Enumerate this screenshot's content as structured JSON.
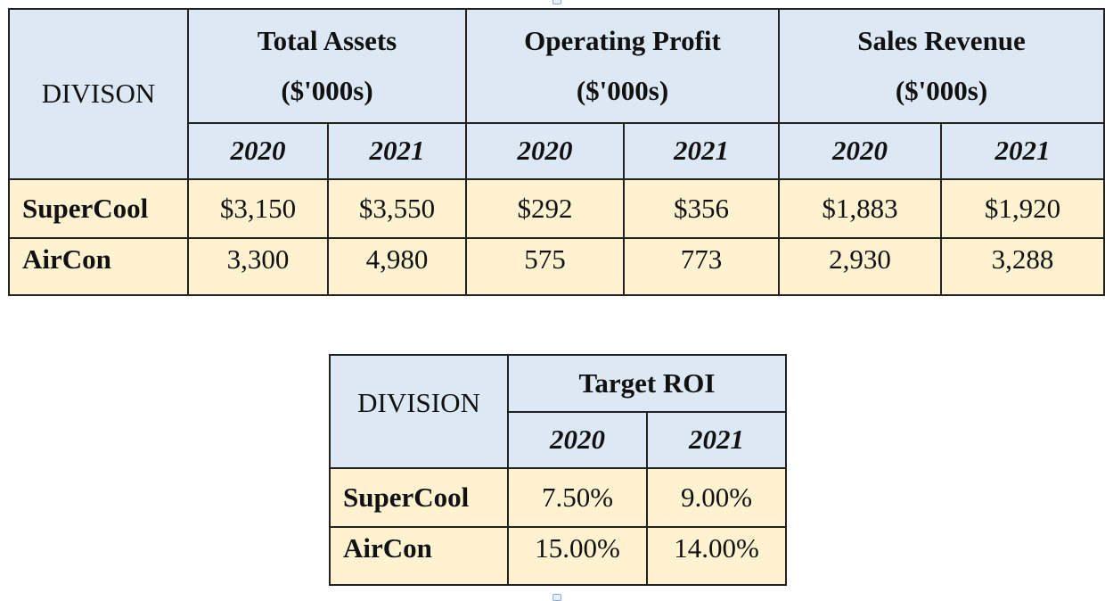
{
  "table1": {
    "division_header": "DIVISON",
    "groups": [
      {
        "title": "Total Assets",
        "unit": "($'000s)"
      },
      {
        "title": "Operating Profit",
        "unit": "($'000s)"
      },
      {
        "title": "Sales Revenue",
        "unit": "($'000s)"
      }
    ],
    "years": [
      "2020",
      "2021",
      "2020",
      "2021",
      "2020",
      "2021"
    ],
    "rows": [
      {
        "division": "SuperCool",
        "values": [
          "$3,150",
          "$3,550",
          "$292",
          "$356",
          "$1,883",
          "$1,920"
        ]
      },
      {
        "division": "AirCon",
        "values": [
          "3,300",
          "4,980",
          "575",
          "773",
          "2,930",
          "3,288"
        ]
      }
    ]
  },
  "table2": {
    "division_header": "DIVISION",
    "group_title": "Target ROI",
    "years": [
      "2020",
      "2021"
    ],
    "rows": [
      {
        "division": "SuperCool",
        "values": [
          "7.50%",
          "9.00%"
        ]
      },
      {
        "division": "AirCon",
        "values": [
          "15.00%",
          "14.00%"
        ]
      }
    ]
  },
  "colors": {
    "header_bg": "#dde8f5",
    "body_bg": "#fff2d0",
    "border": "#222222"
  }
}
